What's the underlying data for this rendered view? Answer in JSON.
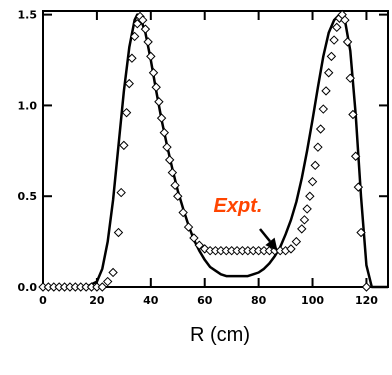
{
  "chart_data": {
    "type": "line",
    "title": "",
    "xlabel": "R (cm)",
    "ylabel": "",
    "xlim": [
      0,
      128
    ],
    "ylim": [
      0,
      1.52
    ],
    "grid": false,
    "x_ticks": [
      0,
      20,
      40,
      60,
      80,
      100,
      120
    ],
    "x_tick_labels": [
      "0",
      "20",
      "40",
      "60",
      "80",
      "100",
      "120"
    ],
    "y_ticks": [
      0.0,
      0.5,
      1.0,
      1.5
    ],
    "y_tick_labels": [
      "0.0",
      "0.5",
      "1.0",
      "1.5"
    ],
    "series": [
      {
        "name": "",
        "style": "solid-line",
        "color": "#000000",
        "x": [
          0,
          10,
          16,
          20,
          22,
          24,
          26,
          28,
          30,
          32,
          34,
          35,
          36,
          38,
          40,
          42,
          44,
          46,
          48,
          50,
          52,
          54,
          56,
          58,
          60,
          62,
          64,
          66,
          68,
          70,
          72,
          74,
          76,
          78,
          80,
          82,
          84,
          86,
          88,
          90,
          92,
          94,
          96,
          98,
          100,
          102,
          104,
          106,
          108,
          110,
          111,
          112,
          114,
          116,
          118,
          120,
          122,
          128
        ],
        "y": [
          0.0,
          0.0,
          0.0,
          0.03,
          0.1,
          0.25,
          0.48,
          0.78,
          1.08,
          1.32,
          1.47,
          1.5,
          1.49,
          1.4,
          1.25,
          1.08,
          0.92,
          0.78,
          0.65,
          0.53,
          0.43,
          0.34,
          0.26,
          0.2,
          0.15,
          0.11,
          0.09,
          0.07,
          0.06,
          0.06,
          0.06,
          0.06,
          0.06,
          0.07,
          0.08,
          0.1,
          0.13,
          0.17,
          0.22,
          0.29,
          0.37,
          0.47,
          0.6,
          0.75,
          0.92,
          1.1,
          1.27,
          1.4,
          1.47,
          1.5,
          1.5,
          1.47,
          1.3,
          0.95,
          0.5,
          0.12,
          0.0,
          0.0
        ]
      },
      {
        "name": "Expt.",
        "style": "diamond-markers",
        "color": "#000000",
        "x": [
          0,
          2,
          4,
          6,
          8,
          10,
          12,
          14,
          16,
          18,
          20,
          22,
          24,
          26,
          28,
          29,
          30,
          31,
          32,
          33,
          34,
          35,
          36,
          37,
          38,
          39,
          40,
          41,
          42,
          43,
          44,
          45,
          46,
          47,
          48,
          49,
          50,
          52,
          54,
          56,
          58,
          60,
          62,
          64,
          66,
          68,
          70,
          72,
          74,
          76,
          78,
          80,
          82,
          84,
          86,
          88,
          90,
          92,
          94,
          96,
          97,
          98,
          99,
          100,
          101,
          102,
          103,
          104,
          105,
          106,
          107,
          108,
          109,
          110,
          111,
          112,
          113,
          114,
          115,
          116,
          117,
          118,
          120
        ],
        "y": [
          0.0,
          0.0,
          0.0,
          0.0,
          0.0,
          0.0,
          0.0,
          0.0,
          0.0,
          0.0,
          0.0,
          0.0,
          0.03,
          0.08,
          0.3,
          0.52,
          0.78,
          0.96,
          1.12,
          1.26,
          1.38,
          1.45,
          1.49,
          1.47,
          1.42,
          1.35,
          1.27,
          1.18,
          1.1,
          1.02,
          0.93,
          0.85,
          0.77,
          0.7,
          0.63,
          0.56,
          0.5,
          0.41,
          0.33,
          0.27,
          0.23,
          0.21,
          0.2,
          0.2,
          0.2,
          0.2,
          0.2,
          0.2,
          0.2,
          0.2,
          0.2,
          0.2,
          0.2,
          0.2,
          0.2,
          0.2,
          0.2,
          0.21,
          0.25,
          0.32,
          0.37,
          0.43,
          0.5,
          0.58,
          0.67,
          0.77,
          0.87,
          0.98,
          1.08,
          1.18,
          1.27,
          1.36,
          1.43,
          1.48,
          1.5,
          1.47,
          1.35,
          1.15,
          0.95,
          0.72,
          0.55,
          0.3,
          0.0
        ]
      }
    ],
    "annotation": {
      "text": "Expt.",
      "color": "#ff4500",
      "arrow_target": {
        "x": 87,
        "y": 0.2
      }
    }
  }
}
